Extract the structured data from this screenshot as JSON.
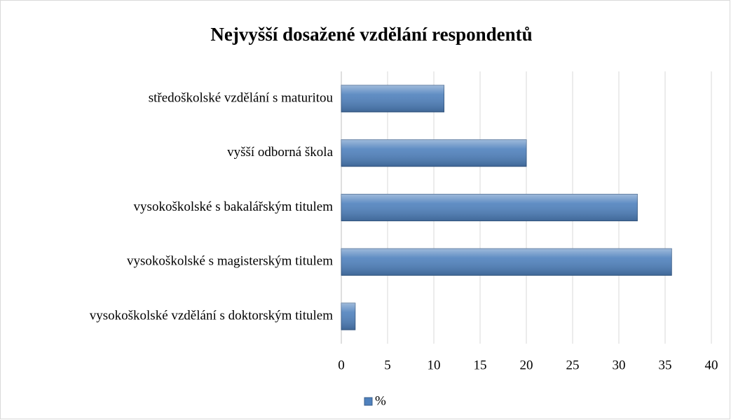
{
  "chart_data": {
    "type": "bar",
    "orientation": "horizontal",
    "title": "Nejvyšší dosažené vzdělání respondentů",
    "categories": [
      "středoškolské vzdělání s maturitou",
      "vyšší odborná škola",
      "vysokoškolské s bakalářským titulem",
      "vysokoškolské s magisterským titulem",
      "vysokoškolské vzdělání s doktorským titulem"
    ],
    "series": [
      {
        "name": "%",
        "color": "#4f81bd",
        "values": [
          11.1,
          20,
          32,
          35.7,
          1.5
        ]
      }
    ],
    "xlim": [
      0,
      40
    ],
    "xticks": [
      0,
      5,
      10,
      15,
      20,
      25,
      30,
      35,
      40
    ],
    "grid": true,
    "legend": "bottom"
  }
}
